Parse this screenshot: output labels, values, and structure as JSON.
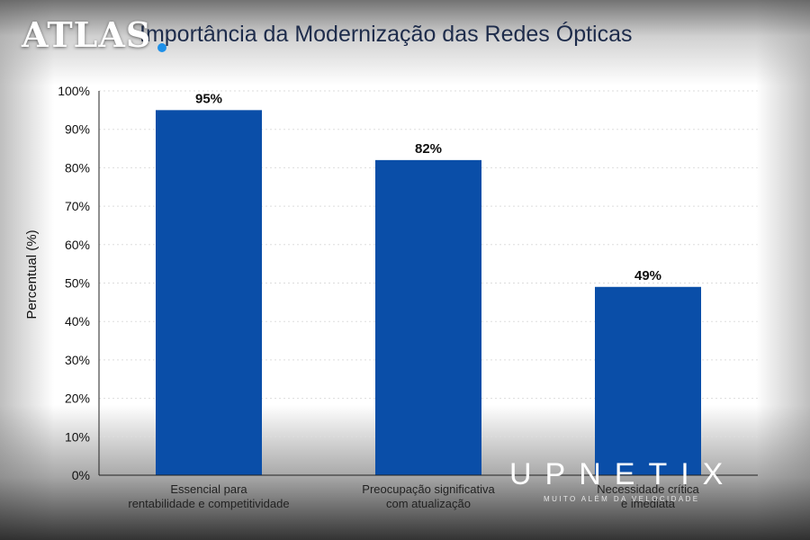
{
  "chart_data": {
    "type": "bar",
    "title": "Importância da Modernização das Redes Ópticas",
    "ylabel": "Percentual (%)",
    "xlabel": "",
    "ylim": [
      0,
      100
    ],
    "yticks": [
      0,
      10,
      20,
      30,
      40,
      50,
      60,
      70,
      80,
      90,
      100
    ],
    "ytick_suffix": "%",
    "grid": true,
    "bar_color": "#0a4ea8",
    "categories": [
      [
        "Essencial para",
        "rentabilidade e competitividade"
      ],
      [
        "Preocupação significativa",
        "com atualização"
      ],
      [
        "Necessidade crítica",
        "e imediata"
      ]
    ],
    "values": [
      95,
      82,
      49
    ],
    "data_labels": [
      "95%",
      "82%",
      "49%"
    ]
  },
  "watermarks": {
    "atlas": "ATLAS",
    "upnetix": "UPNETIX",
    "upnetix_tagline": "MUITO ALÉM DA VELOCIDADE"
  }
}
